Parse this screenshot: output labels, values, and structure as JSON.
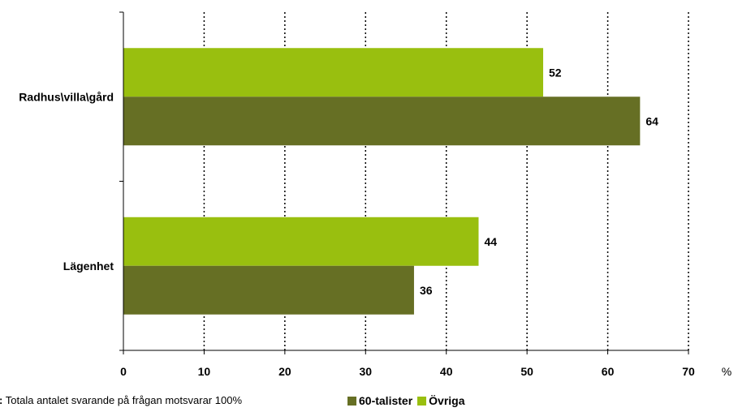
{
  "chart_data": {
    "type": "bar",
    "orientation": "horizontal",
    "categories": [
      "Radhus\\villa\\gård",
      "Lägenhet"
    ],
    "series": [
      {
        "name": "Övriga",
        "values": [
          52,
          44
        ],
        "color": "#99bf0f"
      },
      {
        "name": "60-talister",
        "values": [
          64,
          36
        ],
        "color": "#666f24"
      }
    ],
    "xlim": [
      0,
      70
    ],
    "xticks": [
      0,
      10,
      20,
      30,
      40,
      50,
      60,
      70
    ],
    "unit": "%",
    "grid": "vertical-dotted",
    "legend_position": "bottom",
    "legend_order": [
      "60-talister",
      "Övriga"
    ]
  },
  "note": {
    "prefix": "r:",
    "text": " Totala antalet svarande på frågan motsvarar 100%"
  }
}
